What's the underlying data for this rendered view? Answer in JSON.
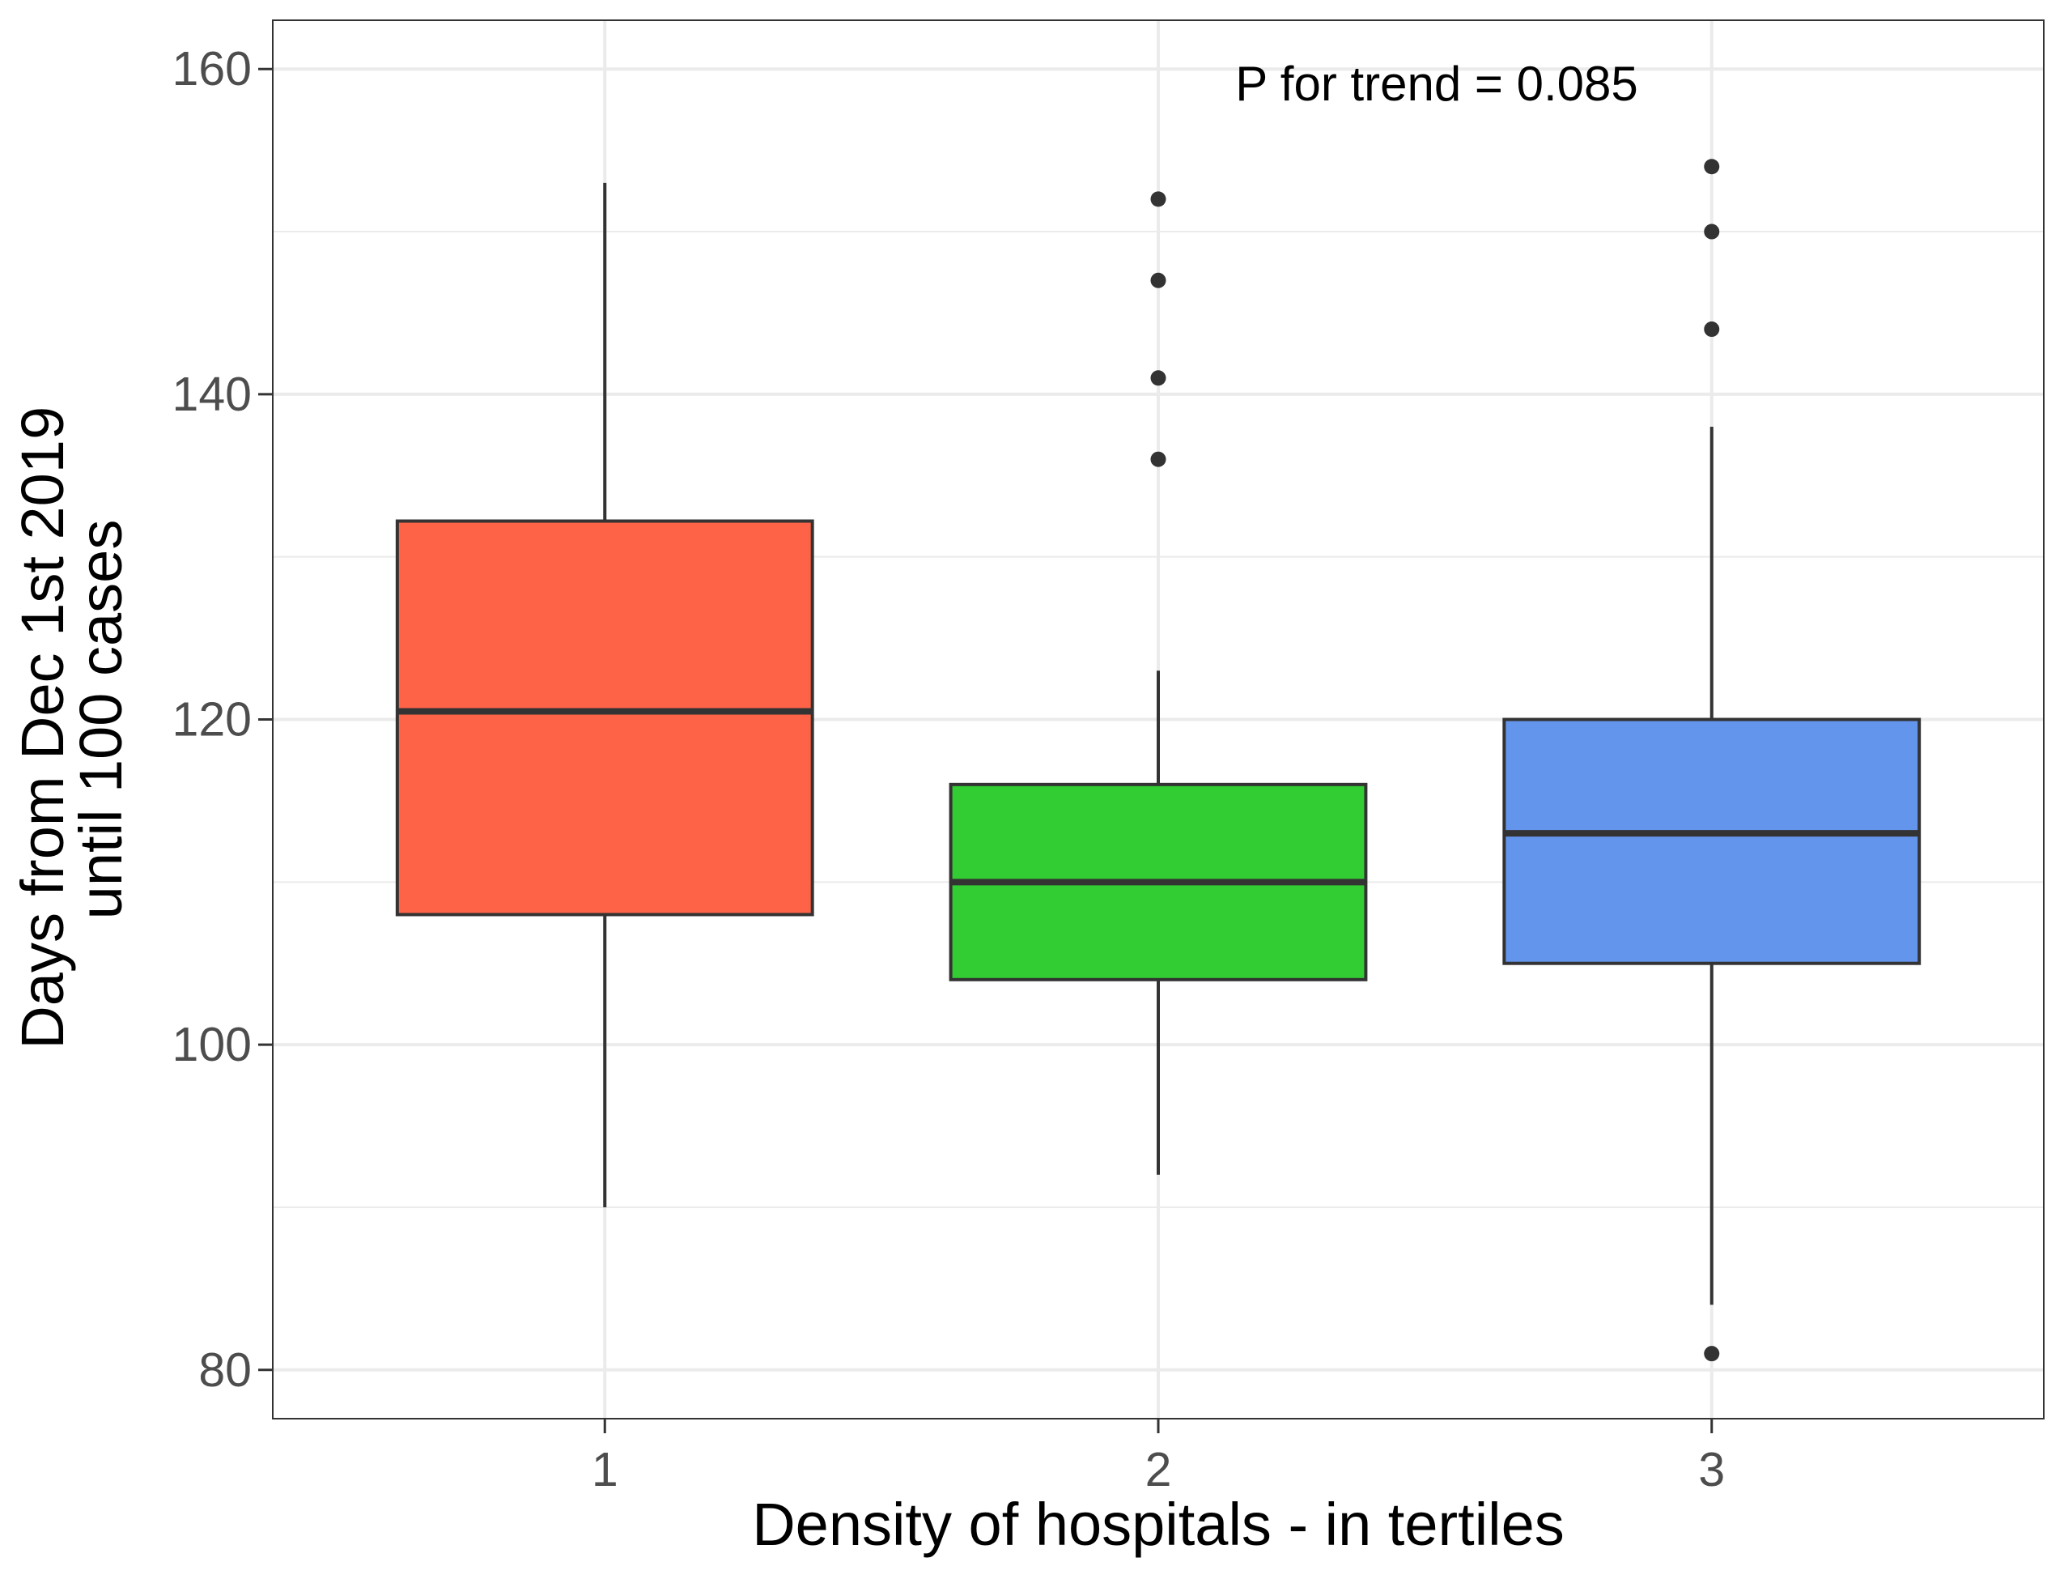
{
  "chart_data": {
    "type": "box",
    "xlabel": "Density of hospitals - in tertiles",
    "ylabel_lines": [
      "Days from Dec 1st 2019",
      "until 100 cases"
    ],
    "annotation": "P for trend = 0.085",
    "ylim": [
      77,
      163
    ],
    "y_ticks": [
      80,
      100,
      120,
      140,
      160
    ],
    "y_minor_ticks": [
      90,
      110,
      130,
      150
    ],
    "grid": true,
    "categories": [
      "1",
      "2",
      "3"
    ],
    "boxes": [
      {
        "category": "1",
        "whisker_low": 90,
        "q1": 108,
        "median": 120.5,
        "q3": 132.2,
        "whisker_high": 153,
        "outliers": [],
        "color": "#FF6347"
      },
      {
        "category": "2",
        "whisker_low": 92,
        "q1": 104,
        "median": 110,
        "q3": 116,
        "whisker_high": 123,
        "outliers": [
          136,
          141,
          147,
          152
        ],
        "color": "#32CD32"
      },
      {
        "category": "3",
        "whisker_low": 84,
        "q1": 105,
        "median": 113,
        "q3": 120,
        "whisker_high": 138,
        "outliers": [
          81,
          144,
          150,
          154
        ],
        "color": "#6495ED"
      }
    ]
  }
}
